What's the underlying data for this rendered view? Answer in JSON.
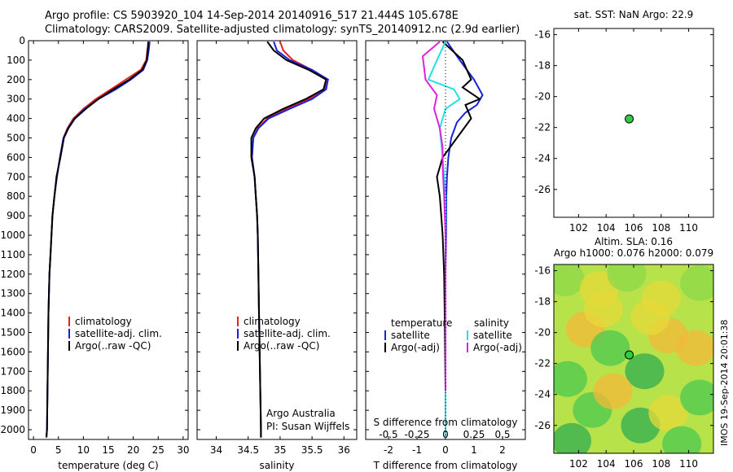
{
  "header": {
    "line1": "Argo profile: CS 5903920_104 14-Sep-2014 20140916_517 21.444S 105.678E",
    "line2": "Climatology: CARS2009. Satellite-adjusted climatology: synTS_20140912.nc (2.9d earlier)"
  },
  "side_stamp": "IMOS 19-Sep-2014 20:01:38",
  "colors": {
    "climatology": "#e8201c",
    "satellite": "#1a22d8",
    "argo": "#000000",
    "sat_salinity": "#22e0e8",
    "argo_salinity": "#e020e0",
    "marker": "#2ecc40"
  },
  "chart_data": [
    {
      "type": "line",
      "name": "temperature",
      "xlabel": "temperature (deg C)",
      "ylabel": "",
      "xlim": [
        -1,
        31
      ],
      "ylim": [
        2050,
        0
      ],
      "xticks": [
        0,
        5,
        10,
        15,
        20,
        25,
        30
      ],
      "yticks": [
        0,
        100,
        200,
        300,
        400,
        500,
        600,
        700,
        800,
        900,
        1000,
        1100,
        1200,
        1300,
        1400,
        1500,
        1600,
        1700,
        1800,
        1900,
        2000
      ],
      "legend": [
        "climatology",
        "satellite-adj. clim.",
        "Argo(..raw -QC)"
      ],
      "legend_position": "lower-center",
      "series": [
        {
          "name": "climatology",
          "color": "#e8201c",
          "x": [
            23.1,
            22.8,
            22.6,
            21.5,
            18.5,
            15.5,
            12.5,
            10.0,
            8.0,
            6.8,
            6.0,
            5.3,
            4.7,
            4.2,
            3.8,
            3.6,
            3.4,
            3.2,
            3.0,
            2.9,
            2.8,
            2.7,
            2.6
          ],
          "y": [
            5,
            50,
            100,
            150,
            200,
            250,
            300,
            350,
            400,
            450,
            500,
            600,
            700,
            800,
            900,
            1000,
            1100,
            1200,
            1400,
            1600,
            1800,
            2000,
            2040
          ]
        },
        {
          "name": "satellite-adj. clim.",
          "color": "#1a22d8",
          "x": [
            23.3,
            23.1,
            22.8,
            22.0,
            19.5,
            16.5,
            13.0,
            10.3,
            8.2,
            6.9,
            6.0,
            5.3,
            4.7,
            4.2,
            3.8,
            3.6,
            3.4,
            3.2,
            3.0,
            2.9,
            2.8,
            2.7,
            2.6
          ],
          "y": [
            5,
            50,
            100,
            150,
            200,
            250,
            300,
            350,
            400,
            450,
            500,
            600,
            700,
            800,
            900,
            1000,
            1100,
            1200,
            1400,
            1600,
            1800,
            2000,
            2040
          ]
        },
        {
          "name": "Argo(..raw -QC)",
          "color": "#000000",
          "x": [
            23.0,
            22.9,
            22.7,
            21.8,
            19.2,
            16.0,
            13.0,
            10.5,
            8.3,
            7.0,
            6.1,
            5.4,
            4.6,
            4.2,
            3.8,
            3.6,
            3.4,
            3.2,
            3.0,
            2.9,
            2.8,
            2.7,
            2.6
          ],
          "y": [
            5,
            50,
            100,
            150,
            200,
            250,
            300,
            350,
            400,
            450,
            500,
            600,
            700,
            800,
            900,
            1000,
            1100,
            1200,
            1400,
            1600,
            1800,
            2000,
            2040
          ]
        }
      ]
    },
    {
      "type": "line",
      "name": "salinity",
      "xlabel": "salinity",
      "ylabel": "",
      "xlim": [
        33.7,
        36.2
      ],
      "ylim": [
        2050,
        0
      ],
      "xticks": [
        34,
        34.5,
        35,
        35.5,
        36
      ],
      "legend": [
        "climatology",
        "satellite-adj. clim.",
        "Argo(..raw -QC)"
      ],
      "legend_position": "lower-center",
      "annotation": [
        "Argo Australia",
        "PI: Susan Wijffels"
      ],
      "series": [
        {
          "name": "climatology",
          "color": "#e8201c",
          "x": [
            35.0,
            35.05,
            35.2,
            35.5,
            35.75,
            35.7,
            35.45,
            35.1,
            34.8,
            34.65,
            34.58,
            34.56,
            34.6,
            34.62,
            34.64,
            34.65,
            34.66,
            34.67,
            34.68,
            34.69,
            34.7,
            34.7
          ],
          "y": [
            5,
            50,
            100,
            150,
            200,
            250,
            300,
            350,
            400,
            450,
            500,
            600,
            700,
            800,
            900,
            1000,
            1200,
            1400,
            1600,
            1800,
            2000,
            2040
          ]
        },
        {
          "name": "satellite-adj. clim.",
          "color": "#1a22d8",
          "x": [
            34.9,
            34.95,
            35.15,
            35.5,
            35.75,
            35.72,
            35.5,
            35.15,
            34.82,
            34.66,
            34.58,
            34.56,
            34.6,
            34.62,
            34.64,
            34.65,
            34.66,
            34.67,
            34.68,
            34.69,
            34.7,
            34.7
          ],
          "y": [
            5,
            50,
            100,
            150,
            200,
            250,
            300,
            350,
            400,
            450,
            500,
            600,
            700,
            800,
            900,
            1000,
            1200,
            1400,
            1600,
            1800,
            2000,
            2040
          ]
        },
        {
          "name": "Argo(..raw -QC)",
          "color": "#000000",
          "x": [
            34.8,
            34.9,
            35.1,
            35.45,
            35.72,
            35.68,
            35.4,
            35.05,
            34.75,
            34.62,
            34.55,
            34.55,
            34.6,
            34.62,
            34.64,
            34.65,
            34.66,
            34.67,
            34.68,
            34.69,
            34.7,
            34.7
          ],
          "y": [
            5,
            50,
            100,
            150,
            200,
            250,
            300,
            350,
            400,
            450,
            500,
            600,
            700,
            800,
            900,
            1000,
            1200,
            1400,
            1600,
            1800,
            2000,
            2040
          ]
        }
      ]
    },
    {
      "type": "line",
      "name": "difference",
      "xlabel": "T difference from climatology",
      "xlabel_top": "S difference from climatology",
      "xlim": [
        -2.8,
        2.8
      ],
      "ylim": [
        2050,
        0
      ],
      "xticks": [
        -2,
        -1,
        0,
        1,
        2
      ],
      "xticks_s": [
        "-0.5",
        "-0.25",
        "0",
        "0.25",
        "0.5"
      ],
      "xticks_s_values": [
        -0.5,
        -0.25,
        0,
        0.25,
        0.5
      ],
      "legend_temperature": {
        "title": "temperature",
        "items": [
          "satellite",
          "Argo(-adj)"
        ]
      },
      "legend_salinity": {
        "title": "salinity",
        "items": [
          "satellite",
          "Argo(-adj)"
        ]
      },
      "legend_position": "lower-center",
      "series": [
        {
          "name": "temperature satellite",
          "color": "#1a22d8",
          "x": [
            0.05,
            0.5,
            1.0,
            1.3,
            1.1,
            0.7,
            0.4,
            0.2,
            0.1,
            0.05,
            0.03,
            0.02,
            0.0,
            0.0,
            0.0,
            0.0,
            0.0
          ],
          "y": [
            5,
            100,
            200,
            280,
            330,
            370,
            420,
            500,
            600,
            700,
            800,
            1000,
            1200,
            1400,
            1600,
            1800,
            2040
          ]
        },
        {
          "name": "temperature Argo(-adj)",
          "color": "#000000",
          "x": [
            -0.1,
            0.6,
            0.9,
            0.6,
            1.2,
            0.7,
            0.9,
            0.4,
            -0.1,
            -0.3,
            -0.2,
            -0.15,
            -0.1,
            -0.05,
            -0.03,
            0.0,
            0.0
          ],
          "y": [
            5,
            100,
            200,
            240,
            300,
            330,
            400,
            500,
            600,
            700,
            800,
            900,
            1000,
            1200,
            1400,
            1800,
            2040
          ]
        },
        {
          "name": "salinity satellite",
          "color": "#22e0e8",
          "x": [
            0.0,
            -0.3,
            -0.6,
            0.3,
            0.5,
            0.0,
            -0.2,
            -0.1,
            0.0,
            0.0,
            0.0,
            0.0,
            0.0
          ],
          "y": [
            5,
            100,
            200,
            250,
            300,
            350,
            450,
            600,
            800,
            1000,
            1400,
            1800,
            2040
          ]
        },
        {
          "name": "salinity Argo(-adj)",
          "color": "#e020e0",
          "x": [
            -0.2,
            -0.8,
            -0.7,
            -0.3,
            -0.4,
            -0.2,
            -0.1,
            -0.1,
            -0.05,
            0.0,
            0.0,
            0.0
          ],
          "y": [
            5,
            80,
            200,
            280,
            350,
            450,
            550,
            650,
            800,
            1000,
            1400,
            1800
          ]
        }
      ]
    },
    {
      "type": "scatter",
      "name": "sst_map",
      "title": "sat. SST: NaN Argo: 22.9",
      "xlim": [
        100.2,
        111.8
      ],
      "ylim": [
        -27.8,
        -15.6
      ],
      "xticks": [
        102,
        104,
        106,
        108,
        110
      ],
      "yticks": [
        -16,
        -18,
        -20,
        -22,
        -24,
        -26
      ],
      "points": [
        {
          "x": 105.678,
          "y": -21.444
        }
      ]
    },
    {
      "type": "heatmap",
      "name": "sla_map",
      "title": [
        "Altim. SLA: 0.16",
        "Argo h1000: 0.076 h2000: 0.079"
      ],
      "xlim": [
        100.2,
        111.8
      ],
      "ylim": [
        -27.8,
        -15.6
      ],
      "xticks": [
        102,
        104,
        106,
        108,
        110
      ],
      "yticks": [
        -16,
        -18,
        -20,
        -22,
        -24,
        -26
      ],
      "points": [
        {
          "x": 105.678,
          "y": -21.444
        }
      ],
      "blobs": [
        {
          "x": 101.0,
          "y": -16.5,
          "v": 0.4
        },
        {
          "x": 103.5,
          "y": -17.2,
          "v": 0.5
        },
        {
          "x": 105.5,
          "y": -16.2,
          "v": 0.35
        },
        {
          "x": 108.0,
          "y": -17.8,
          "v": 0.6
        },
        {
          "x": 110.8,
          "y": -16.8,
          "v": 0.45
        },
        {
          "x": 102.5,
          "y": -19.8,
          "v": 0.75
        },
        {
          "x": 104.3,
          "y": -21.0,
          "v": 0.2
        },
        {
          "x": 106.8,
          "y": -22.5,
          "v": 0.15
        },
        {
          "x": 108.5,
          "y": -20.2,
          "v": 0.8
        },
        {
          "x": 110.5,
          "y": -21.0,
          "v": 0.7
        },
        {
          "x": 101.2,
          "y": -23.0,
          "v": 0.3
        },
        {
          "x": 103.0,
          "y": -25.0,
          "v": 0.2
        },
        {
          "x": 104.5,
          "y": -23.8,
          "v": 0.65
        },
        {
          "x": 106.5,
          "y": -26.0,
          "v": 0.1
        },
        {
          "x": 108.5,
          "y": -25.2,
          "v": 0.55
        },
        {
          "x": 110.8,
          "y": -24.2,
          "v": 0.2
        },
        {
          "x": 101.5,
          "y": -27.0,
          "v": 0.15
        },
        {
          "x": 109.5,
          "y": -27.2,
          "v": 0.25
        },
        {
          "x": 103.8,
          "y": -18.5,
          "v": 0.55
        },
        {
          "x": 107.2,
          "y": -19.0,
          "v": 0.5
        }
      ]
    }
  ]
}
